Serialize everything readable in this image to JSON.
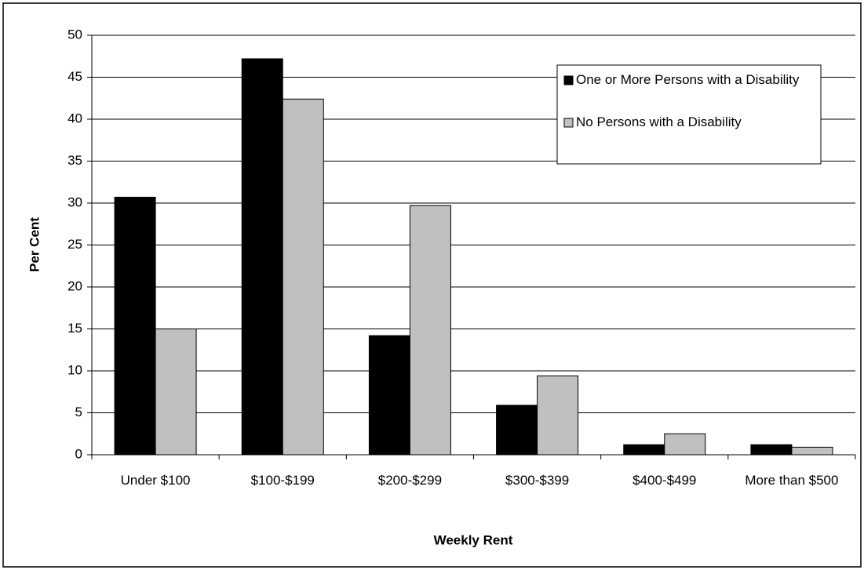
{
  "chart_data": {
    "type": "bar",
    "x_label": "Weekly Rent",
    "y_label": "Per Cent",
    "categories": [
      "Under $100",
      "$100-$199",
      "$200-$299",
      "$300-$399",
      "$400-$499",
      "More than $500"
    ],
    "series": [
      {
        "name": "One or More Persons with a Disability",
        "color": "#000000",
        "values": [
          30.7,
          47.2,
          14.2,
          5.9,
          1.2,
          1.2
        ]
      },
      {
        "name": "No Persons with a Disability",
        "color": "#c0c0c0",
        "values": [
          15.0,
          42.4,
          29.7,
          9.4,
          2.5,
          0.9
        ]
      }
    ],
    "ylim": [
      0,
      50
    ],
    "yticks": [
      0,
      5,
      10,
      15,
      20,
      25,
      30,
      35,
      40,
      45,
      50
    ],
    "grid": true,
    "legend": "upper right"
  }
}
